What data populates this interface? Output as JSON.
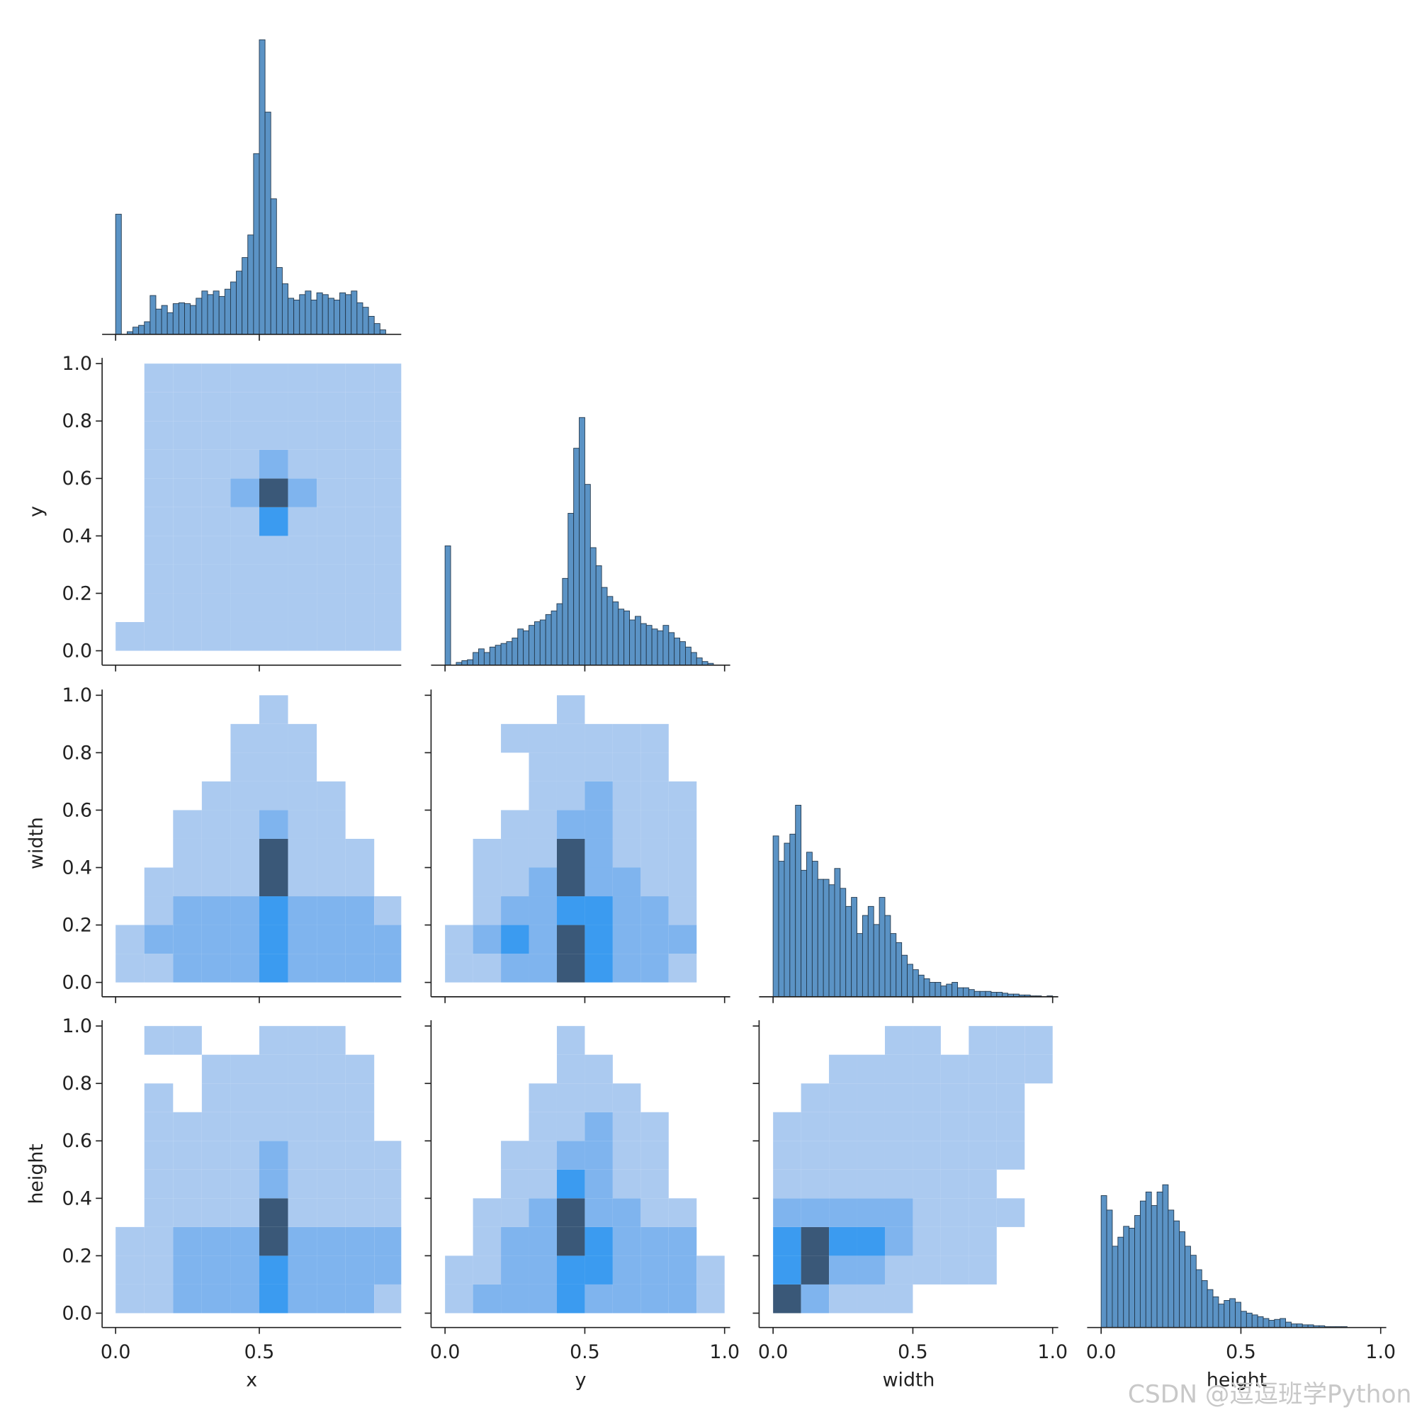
{
  "chart_data": {
    "type": "pairplot",
    "variables": [
      {
        "name": "x",
        "lim": [
          -0.047,
          0.994
        ],
        "xticks": [
          {
            "value": 0,
            "label": "0.0"
          },
          {
            "value": 0.5,
            "label": "0.5"
          }
        ]
      },
      {
        "name": "y",
        "lim": [
          -0.05,
          1.02
        ],
        "xticks": [
          {
            "value": 0,
            "label": "0.0"
          },
          {
            "value": 0.5,
            "label": "0.5"
          },
          {
            "value": 1,
            "label": "1.0"
          }
        ],
        "yticks": [
          {
            "value": 0,
            "label": "0.0"
          },
          {
            "value": 0.2,
            "label": "0.2"
          },
          {
            "value": 0.4,
            "label": "0.4"
          },
          {
            "value": 0.6,
            "label": "0.6"
          },
          {
            "value": 0.8,
            "label": "0.8"
          },
          {
            "value": 1,
            "label": "1.0"
          }
        ]
      },
      {
        "name": "width",
        "lim": [
          -0.05,
          1.02
        ],
        "xticks": [
          {
            "value": 0,
            "label": "0.0"
          },
          {
            "value": 0.5,
            "label": "0.5"
          },
          {
            "value": 1,
            "label": "1.0"
          }
        ],
        "yticks": [
          {
            "value": 0,
            "label": "0.0"
          },
          {
            "value": 0.2,
            "label": "0.2"
          },
          {
            "value": 0.4,
            "label": "0.4"
          },
          {
            "value": 0.6,
            "label": "0.6"
          },
          {
            "value": 0.8,
            "label": "0.8"
          },
          {
            "value": 1,
            "label": "1.0"
          }
        ]
      },
      {
        "name": "height",
        "lim": [
          -0.05,
          1.02
        ],
        "xticks": [
          {
            "value": 0,
            "label": "0.0"
          },
          {
            "value": 0.5,
            "label": "0.5"
          },
          {
            "value": 1,
            "label": "1.0"
          }
        ],
        "yticks": [
          {
            "value": 0,
            "label": "0.0"
          },
          {
            "value": 0.2,
            "label": "0.2"
          },
          {
            "value": 0.4,
            "label": "0.4"
          },
          {
            "value": 0.6,
            "label": "0.6"
          },
          {
            "value": 0.8,
            "label": "0.8"
          },
          {
            "value": 1,
            "label": "1.0"
          }
        ]
      }
    ],
    "hist_color": "#5b93c5",
    "hist_ylim": [
      0,
      340
    ],
    "hist_bins": [
      0,
      0.02,
      0.04,
      0.06,
      0.08,
      0.1,
      0.12,
      0.14,
      0.16,
      0.18,
      0.2,
      0.22,
      0.24,
      0.26,
      0.28,
      0.3,
      0.32,
      0.34,
      0.36,
      0.38,
      0.4,
      0.42,
      0.44,
      0.46,
      0.48,
      0.5,
      0.52,
      0.54,
      0.56,
      0.58,
      0.6,
      0.62,
      0.64,
      0.66,
      0.68,
      0.7,
      0.72,
      0.74,
      0.76,
      0.78,
      0.8,
      0.82,
      0.84,
      0.86,
      0.88,
      0.9,
      0.92,
      0.94,
      0.96,
      0.98,
      1
    ],
    "histograms": [
      [
        133,
        0,
        3,
        8,
        10,
        14,
        43,
        28,
        32,
        24,
        34,
        35,
        34,
        32,
        40,
        48,
        44,
        48,
        42,
        50,
        58,
        70,
        85,
        110,
        200,
        326,
        246,
        150,
        74,
        56,
        40,
        38,
        44,
        48,
        38,
        46,
        44,
        40,
        38,
        46,
        44,
        48,
        35,
        30,
        20,
        12,
        5,
        0,
        0,
        0
      ],
      [
        132,
        0,
        3,
        5,
        6,
        14,
        18,
        14,
        20,
        22,
        24,
        26,
        30,
        40,
        38,
        44,
        48,
        50,
        56,
        60,
        68,
        96,
        168,
        240,
        274,
        200,
        130,
        110,
        86,
        76,
        70,
        62,
        60,
        50,
        54,
        46,
        44,
        40,
        38,
        44,
        36,
        30,
        26,
        20,
        14,
        8,
        4,
        2,
        0,
        0
      ],
      [
        178,
        150,
        170,
        180,
        212,
        140,
        160,
        150,
        130,
        130,
        124,
        142,
        120,
        100,
        110,
        70,
        90,
        100,
        80,
        110,
        90,
        70,
        60,
        46,
        36,
        30,
        24,
        20,
        16,
        16,
        12,
        14,
        16,
        10,
        10,
        8,
        6,
        6,
        6,
        5,
        5,
        4,
        3,
        3,
        2,
        2,
        1,
        1,
        0,
        1
      ],
      [
        146,
        130,
        90,
        100,
        112,
        110,
        124,
        140,
        150,
        135,
        150,
        158,
        130,
        118,
        106,
        90,
        80,
        64,
        52,
        42,
        34,
        26,
        30,
        32,
        28,
        18,
        16,
        14,
        12,
        10,
        8,
        9,
        10,
        6,
        4,
        4,
        3,
        3,
        2,
        2,
        1,
        1,
        1,
        1,
        0,
        0,
        0,
        0,
        0,
        0
      ]
    ],
    "heatmap_bins": [
      0,
      0.1,
      0.2,
      0.3,
      0.4,
      0.5,
      0.6,
      0.7,
      0.8,
      0.9,
      1
    ],
    "heatmap_colors": [
      "#abcaf0",
      "#7fb4ee",
      "#3b9bf0",
      "#3a5878"
    ],
    "heatmaps": [
      [
        [
          [
            1,
            1,
            1,
            1,
            1,
            1,
            1,
            1,
            1,
            1
          ],
          [
            0,
            1,
            1,
            1,
            1,
            1,
            1,
            1,
            1,
            1
          ],
          [
            0,
            1,
            1,
            1,
            1,
            1,
            1,
            1,
            1,
            1
          ],
          [
            0,
            1,
            1,
            1,
            1,
            1,
            1,
            1,
            1,
            1
          ],
          [
            0,
            1,
            1,
            1,
            1,
            3,
            1,
            1,
            1,
            1
          ],
          [
            0,
            1,
            1,
            1,
            2,
            4,
            2,
            1,
            1,
            1
          ],
          [
            0,
            1,
            1,
            1,
            1,
            2,
            1,
            1,
            1,
            1
          ],
          [
            0,
            1,
            1,
            1,
            1,
            1,
            1,
            1,
            1,
            1
          ],
          [
            0,
            1,
            1,
            1,
            1,
            1,
            1,
            1,
            1,
            1
          ],
          [
            0,
            1,
            1,
            1,
            1,
            1,
            1,
            1,
            1,
            1
          ]
        ]
      ],
      [
        [
          [
            1,
            1,
            2,
            2,
            2,
            3,
            2,
            2,
            2,
            2
          ],
          [
            1,
            2,
            2,
            2,
            2,
            3,
            2,
            2,
            2,
            2
          ],
          [
            0,
            1,
            2,
            2,
            2,
            3,
            2,
            2,
            2,
            1
          ],
          [
            0,
            1,
            1,
            1,
            1,
            4,
            1,
            1,
            1,
            0
          ],
          [
            0,
            0,
            1,
            1,
            1,
            4,
            1,
            1,
            1,
            0
          ],
          [
            0,
            0,
            1,
            1,
            1,
            2,
            1,
            1,
            0,
            0
          ],
          [
            0,
            0,
            0,
            1,
            1,
            1,
            1,
            1,
            0,
            0
          ],
          [
            0,
            0,
            0,
            0,
            1,
            1,
            1,
            0,
            0,
            0
          ],
          [
            0,
            0,
            0,
            0,
            1,
            1,
            1,
            0,
            0,
            0
          ],
          [
            0,
            0,
            0,
            0,
            0,
            1,
            0,
            0,
            0,
            0
          ]
        ],
        [
          [
            1,
            1,
            2,
            2,
            4,
            3,
            2,
            2,
            1,
            0
          ],
          [
            1,
            2,
            3,
            2,
            4,
            3,
            2,
            2,
            2,
            0
          ],
          [
            0,
            1,
            2,
            2,
            3,
            3,
            2,
            2,
            1,
            0
          ],
          [
            0,
            1,
            1,
            2,
            4,
            2,
            2,
            1,
            1,
            0
          ],
          [
            0,
            1,
            1,
            1,
            4,
            2,
            1,
            1,
            1,
            0
          ],
          [
            0,
            0,
            1,
            1,
            2,
            2,
            1,
            1,
            1,
            0
          ],
          [
            0,
            0,
            0,
            1,
            1,
            2,
            1,
            1,
            1,
            0
          ],
          [
            0,
            0,
            0,
            1,
            1,
            1,
            1,
            1,
            0,
            0
          ],
          [
            0,
            0,
            1,
            1,
            1,
            1,
            1,
            1,
            0,
            0
          ],
          [
            0,
            0,
            0,
            0,
            1,
            0,
            0,
            0,
            0,
            0
          ]
        ]
      ],
      [
        [
          [
            1,
            1,
            2,
            2,
            2,
            3,
            2,
            2,
            2,
            1
          ],
          [
            1,
            1,
            2,
            2,
            2,
            3,
            2,
            2,
            2,
            2
          ],
          [
            1,
            1,
            2,
            2,
            2,
            4,
            2,
            2,
            2,
            2
          ],
          [
            0,
            1,
            1,
            1,
            1,
            4,
            1,
            1,
            1,
            1
          ],
          [
            0,
            1,
            1,
            1,
            1,
            2,
            1,
            1,
            1,
            1
          ],
          [
            0,
            1,
            1,
            1,
            1,
            2,
            1,
            1,
            1,
            1
          ],
          [
            0,
            1,
            1,
            1,
            1,
            1,
            1,
            1,
            1,
            0
          ],
          [
            0,
            1,
            0,
            1,
            1,
            1,
            1,
            1,
            1,
            0
          ],
          [
            0,
            0,
            0,
            1,
            1,
            1,
            1,
            1,
            1,
            0
          ],
          [
            0,
            1,
            1,
            0,
            0,
            1,
            1,
            1,
            0,
            0
          ]
        ],
        [
          [
            1,
            2,
            2,
            2,
            3,
            2,
            2,
            2,
            2,
            1
          ],
          [
            1,
            1,
            2,
            2,
            3,
            3,
            2,
            2,
            2,
            1
          ],
          [
            0,
            1,
            2,
            2,
            4,
            3,
            2,
            2,
            2,
            0
          ],
          [
            0,
            1,
            1,
            2,
            4,
            2,
            2,
            1,
            1,
            0
          ],
          [
            0,
            0,
            1,
            1,
            3,
            2,
            1,
            1,
            0,
            0
          ],
          [
            0,
            0,
            1,
            1,
            2,
            2,
            1,
            1,
            0,
            0
          ],
          [
            0,
            0,
            0,
            1,
            1,
            2,
            1,
            1,
            0,
            0
          ],
          [
            0,
            0,
            0,
            1,
            1,
            1,
            1,
            0,
            0,
            0
          ],
          [
            0,
            0,
            0,
            0,
            1,
            1,
            0,
            0,
            0,
            0
          ],
          [
            0,
            0,
            0,
            0,
            1,
            0,
            0,
            0,
            0,
            0
          ]
        ],
        [
          [
            4,
            2,
            1,
            1,
            1,
            0,
            0,
            0,
            0,
            0
          ],
          [
            3,
            4,
            2,
            2,
            1,
            1,
            1,
            1,
            0,
            0
          ],
          [
            3,
            4,
            3,
            3,
            2,
            1,
            1,
            1,
            0,
            0
          ],
          [
            2,
            2,
            2,
            2,
            2,
            1,
            1,
            1,
            1,
            0
          ],
          [
            1,
            1,
            1,
            1,
            1,
            1,
            1,
            1,
            0,
            0
          ],
          [
            1,
            1,
            1,
            1,
            1,
            1,
            1,
            1,
            1,
            0
          ],
          [
            1,
            1,
            1,
            1,
            1,
            1,
            1,
            1,
            1,
            0
          ],
          [
            0,
            1,
            1,
            1,
            1,
            1,
            1,
            1,
            1,
            0
          ],
          [
            0,
            0,
            1,
            1,
            1,
            1,
            1,
            1,
            1,
            1
          ],
          [
            0,
            0,
            0,
            0,
            1,
            1,
            0,
            1,
            1,
            1
          ]
        ]
      ]
    ],
    "watermark": "CSDN @逗逗班学Python"
  }
}
